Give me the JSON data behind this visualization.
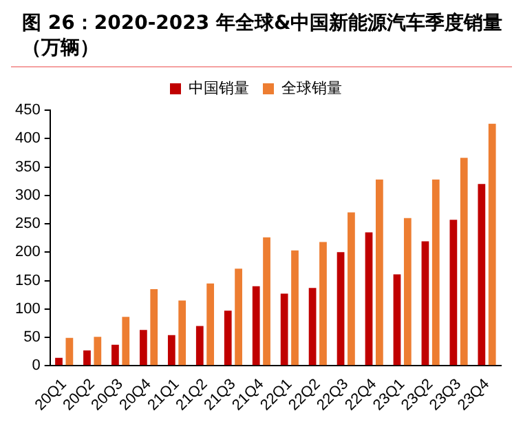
{
  "chart_data": {
    "type": "bar",
    "title": "图 26：2020-2023 年全球&中国新能源汽车季度销量（万辆）",
    "categories": [
      "20Q1",
      "20Q2",
      "20Q3",
      "20Q4",
      "21Q1",
      "21Q2",
      "21Q3",
      "21Q4",
      "22Q1",
      "22Q2",
      "22Q3",
      "22Q4",
      "23Q1",
      "23Q2",
      "23Q3",
      "23Q4"
    ],
    "series": [
      {
        "name": "中国销量",
        "color": "#c00000",
        "values": [
          14,
          27,
          37,
          63,
          54,
          70,
          97,
          140,
          127,
          137,
          200,
          235,
          161,
          219,
          257,
          320
        ]
      },
      {
        "name": "全球销量",
        "color": "#ed7d31",
        "values": [
          49,
          51,
          86,
          135,
          115,
          145,
          171,
          226,
          203,
          218,
          270,
          328,
          260,
          328,
          366,
          426
        ]
      }
    ],
    "ylim": [
      0,
      450
    ],
    "yticks": [
      0,
      50,
      100,
      150,
      200,
      250,
      300,
      350,
      400,
      450
    ],
    "grid": false,
    "legend": "top"
  }
}
